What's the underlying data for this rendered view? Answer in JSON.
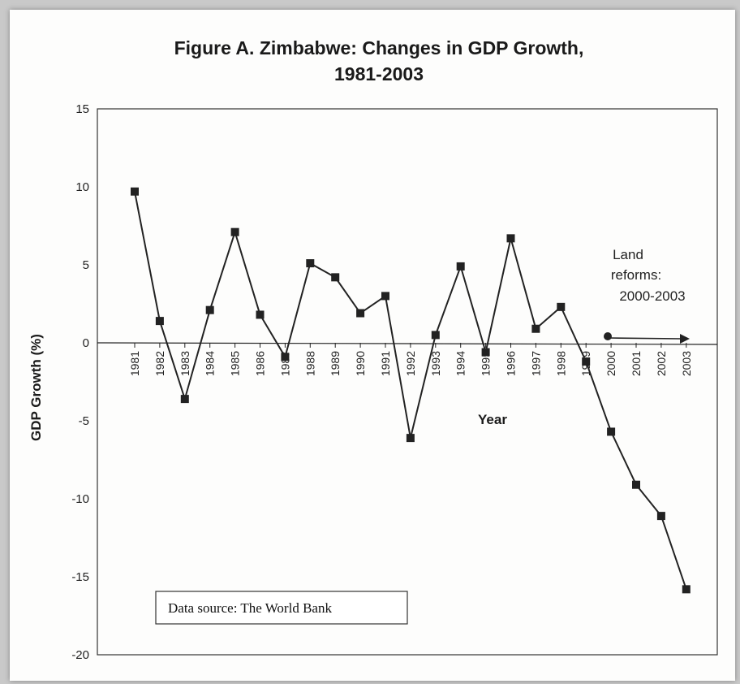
{
  "chart_data": {
    "type": "line",
    "title_line1": "Figure A.  Zimbabwe: Changes in GDP Growth,",
    "title_line2": "1981-2003",
    "xlabel": "Year",
    "ylabel": "GDP Growth (%)",
    "ylim": [
      -20,
      15
    ],
    "yticks": [
      15,
      10,
      5,
      0,
      -5,
      -10,
      -15,
      -20
    ],
    "x": [
      "1981",
      "1982",
      "1983",
      "1984",
      "1985",
      "1986",
      "1987",
      "1988",
      "1989",
      "1990",
      "1991",
      "1992",
      "1993",
      "1994",
      "1995",
      "1996",
      "1997",
      "1998",
      "1999",
      "2000",
      "2001",
      "2002",
      "2003"
    ],
    "values": [
      9.7,
      1.4,
      -3.6,
      2.1,
      7.1,
      1.8,
      -0.9,
      5.1,
      4.2,
      1.9,
      3.0,
      -6.1,
      0.5,
      4.9,
      -0.6,
      6.7,
      0.9,
      2.3,
      -1.2,
      -5.7,
      -9.1,
      -11.1,
      -15.8
    ],
    "annotation_lines": [
      "Land",
      "reforms:",
      "2000-2003"
    ],
    "source_text": "Data source: The World Bank",
    "marker": "square",
    "line_color": "#222222"
  }
}
